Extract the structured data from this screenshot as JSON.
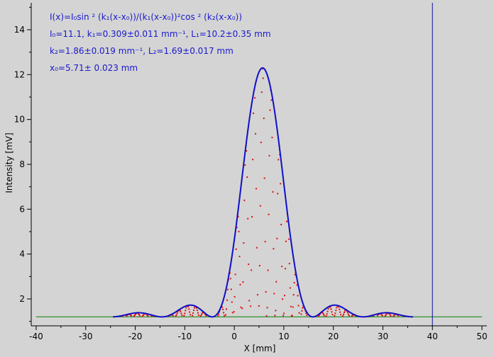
{
  "chart_data": {
    "type": "scatter",
    "xlabel": "X [mm]",
    "ylabel": "Intensity [mV]",
    "xlim": [
      -41,
      51
    ],
    "ylim": [
      0.8,
      15.2
    ],
    "x_ticks": [
      -40,
      -30,
      -20,
      -10,
      0,
      10,
      20,
      30,
      40,
      50
    ],
    "y_ticks": [
      2,
      4,
      6,
      8,
      10,
      12,
      14
    ],
    "grid": false,
    "cursor_x": 40,
    "background_level": 1.2,
    "annotations": [
      "I(x)=I₀sin ² (k₁(x-x₀))/(k₁(x-x₀))²cos ² (k₂(x-x₀))",
      "I₀=11.1,  k₁=0.309±0.011 mm⁻¹,   L₁=10.2±0.35 mm",
      "k₂=1.86±0.019 mm⁻¹,   L₂=1.69±0.017 mm",
      "x₀=5.71±  0.023 mm"
    ],
    "fit_params": {
      "I0": 11.1,
      "k1": 0.309,
      "k2": 1.86,
      "x0": 5.71
    },
    "colors": {
      "background": "#d4d4d4",
      "fit": "#1010c8",
      "data": "#dd1010",
      "baseline": "#1a8a1a",
      "cursor": "#1010a0",
      "annotation": "#1a1acc"
    }
  }
}
